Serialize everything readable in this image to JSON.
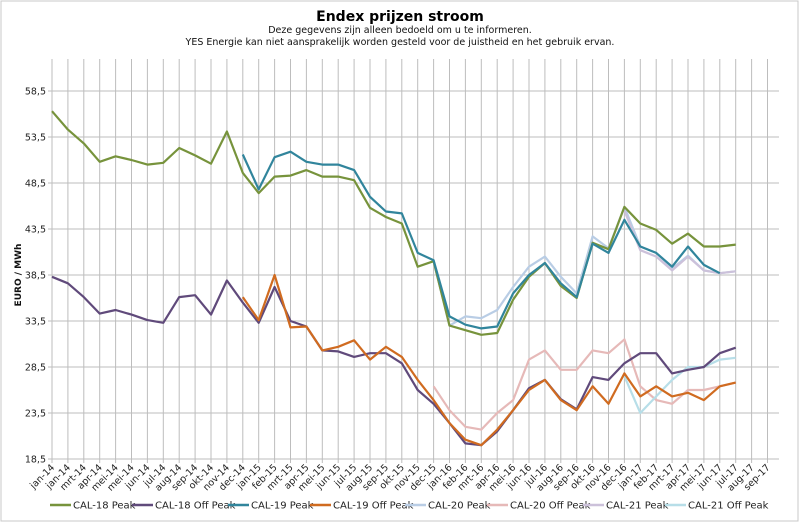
{
  "chart_data": {
    "type": "line",
    "title": "Endex prijzen stroom",
    "subtitle": [
      "Deze gegevens zijn alleen bedoeld om u te informeren.",
      "YES Energie kan niet aansprakelijk worden gesteld voor de juistheid en het gebruik ervan."
    ],
    "xlabel": "",
    "ylabel": "EURO / MWh",
    "ylim": [
      18.5,
      62
    ],
    "yticks": [
      "18,5",
      "23,5",
      "28,5",
      "33,5",
      "38,5",
      "43,5",
      "48,5",
      "53,5",
      "58,5"
    ],
    "grid": true,
    "legend_position": "bottom",
    "categories": [
      "jan-14",
      "jan-14",
      "mrt-14",
      "apr-14",
      "mei-14",
      "mei-14",
      "jun-14",
      "jul-14",
      "aug-14",
      "sep-14",
      "okt-14",
      "nov-14",
      "dec-14",
      "jan-15",
      "feb-15",
      "mrt-15",
      "apr-15",
      "mei-15",
      "jun-15",
      "jul-15",
      "aug-15",
      "sep-15",
      "okt-15",
      "nov-15",
      "dec-15",
      "jan-16",
      "feb-16",
      "mrt-16",
      "apr-16",
      "mei-16",
      "jun-16",
      "jul-16",
      "aug-16",
      "sep-16",
      "okt-16",
      "nov-16",
      "dec-16",
      "jan-17",
      "feb-17",
      "mrt-17",
      "apr-17",
      "mei-17",
      "jun-17",
      "jul-17",
      "aug-17",
      "sep-17"
    ],
    "series": [
      {
        "name": "CAL-18 Peak",
        "color": "#77933c",
        "values": [
          56.3,
          54.3,
          52.8,
          50.8,
          51.4,
          51.0,
          50.5,
          50.7,
          52.3,
          51.5,
          50.6,
          54.1,
          49.6,
          47.4,
          49.2,
          49.3,
          49.9,
          49.2,
          49.2,
          48.8,
          45.8,
          44.8,
          44.1,
          39.4,
          40.0,
          33.0,
          32.5,
          32.0,
          32.2,
          35.8,
          38.3,
          39.8,
          37.3,
          36.0,
          42.0,
          41.3,
          45.9,
          44.1,
          43.4,
          41.9,
          43.0,
          41.6,
          41.6,
          41.8,
          null,
          null
        ]
      },
      {
        "name": "CAL-18 Off Peak",
        "color": "#604a7b",
        "values": [
          38.3,
          37.6,
          36.1,
          34.3,
          34.7,
          34.2,
          33.6,
          33.3,
          36.1,
          36.3,
          34.2,
          37.9,
          35.5,
          33.3,
          37.2,
          33.5,
          32.9,
          30.3,
          30.2,
          29.6,
          30.0,
          30.0,
          28.9,
          26.0,
          24.5,
          22.4,
          20.2,
          20.0,
          21.5,
          23.8,
          26.2,
          27.1,
          25.0,
          23.9,
          27.4,
          27.1,
          28.9,
          30.0,
          30.0,
          27.8,
          28.2,
          28.5,
          30.0,
          30.6,
          null,
          null
        ]
      },
      {
        "name": "CAL-19 Peak",
        "color": "#31859c",
        "values": [
          null,
          null,
          null,
          null,
          null,
          null,
          null,
          null,
          null,
          null,
          null,
          null,
          51.6,
          47.8,
          51.3,
          51.9,
          50.8,
          50.5,
          50.5,
          49.9,
          47.0,
          45.4,
          45.2,
          40.9,
          40.1,
          34.0,
          33.1,
          32.7,
          32.9,
          36.5,
          38.5,
          39.8,
          37.6,
          36.1,
          41.9,
          40.9,
          44.5,
          41.6,
          40.9,
          39.4,
          41.6,
          39.6,
          38.7,
          null,
          null,
          null
        ]
      },
      {
        "name": "CAL-19 Off Peak",
        "color": "#d06b20",
        "values": [
          null,
          null,
          null,
          null,
          null,
          null,
          null,
          null,
          null,
          null,
          null,
          null,
          36.1,
          33.6,
          38.5,
          32.8,
          32.9,
          30.3,
          30.7,
          31.4,
          29.3,
          30.7,
          29.6,
          27.1,
          24.9,
          22.4,
          20.6,
          20.0,
          21.7,
          23.8,
          26.0,
          27.1,
          24.9,
          23.8,
          26.4,
          24.5,
          27.8,
          25.3,
          26.4,
          25.3,
          25.7,
          24.9,
          26.4,
          26.8,
          null,
          null
        ]
      },
      {
        "name": "CAL-20 Peak",
        "color": "#b9cde5",
        "values": [
          null,
          null,
          null,
          null,
          null,
          null,
          null,
          null,
          null,
          null,
          null,
          null,
          null,
          null,
          null,
          null,
          null,
          null,
          null,
          null,
          null,
          null,
          null,
          null,
          40.0,
          33.0,
          34.0,
          33.8,
          34.7,
          37.2,
          39.4,
          40.5,
          38.3,
          36.5,
          42.7,
          41.4,
          45.9,
          41.6,
          40.9,
          39.2,
          40.6,
          39.0,
          38.7,
          38.9,
          null,
          null
        ]
      },
      {
        "name": "CAL-20 Off Peak",
        "color": "#e6b9b8",
        "values": [
          null,
          null,
          null,
          null,
          null,
          null,
          null,
          null,
          null,
          null,
          null,
          null,
          null,
          null,
          null,
          null,
          null,
          null,
          null,
          null,
          null,
          null,
          null,
          null,
          26.4,
          23.8,
          22.0,
          21.7,
          23.5,
          24.9,
          29.3,
          30.3,
          28.2,
          28.2,
          30.3,
          30.0,
          31.5,
          26.4,
          24.9,
          24.5,
          26.0,
          26.0,
          26.4,
          26.8,
          null,
          null
        ]
      },
      {
        "name": "CAL-21 Peak",
        "color": "#ccc1da",
        "values": [
          null,
          null,
          null,
          null,
          null,
          null,
          null,
          null,
          null,
          null,
          null,
          null,
          null,
          null,
          null,
          null,
          null,
          null,
          null,
          null,
          null,
          null,
          null,
          null,
          null,
          null,
          null,
          null,
          null,
          null,
          null,
          null,
          null,
          null,
          null,
          null,
          45.5,
          41.2,
          40.5,
          39.0,
          40.5,
          39.0,
          38.7,
          38.9,
          null,
          null
        ]
      },
      {
        "name": "CAL-21 Off Peak",
        "color": "#b7dee8",
        "values": [
          null,
          null,
          null,
          null,
          null,
          null,
          null,
          null,
          null,
          null,
          null,
          null,
          null,
          null,
          null,
          null,
          null,
          null,
          null,
          null,
          null,
          null,
          null,
          null,
          null,
          null,
          null,
          null,
          null,
          null,
          null,
          null,
          null,
          null,
          null,
          null,
          27.5,
          23.5,
          25.3,
          27.1,
          28.5,
          28.5,
          29.3,
          29.5,
          null,
          null
        ]
      }
    ]
  }
}
